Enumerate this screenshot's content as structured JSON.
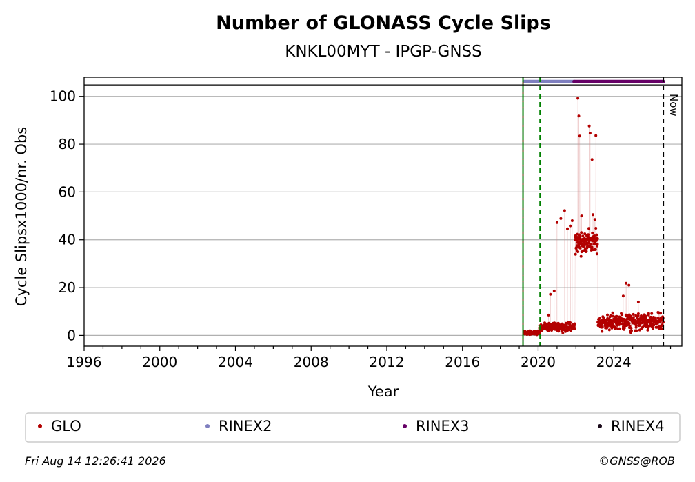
{
  "chart_data": {
    "type": "scatter",
    "title": "Number of GLONASS Cycle Slips",
    "subtitle": "KNKL00MYT - IPGP-GNSS",
    "xlabel": "Year",
    "ylabel": "Cycle Slipsx1000/nr. Obs",
    "xlim": [
      1996,
      2027.6
    ],
    "ylim": [
      -4.5,
      108
    ],
    "x_ticks": [
      1996,
      2000,
      2004,
      2008,
      2012,
      2016,
      2020,
      2024
    ],
    "x_tick_labels": [
      "1996",
      "2000",
      "2004",
      "2008",
      "2012",
      "2016",
      "2020",
      "2024"
    ],
    "y_ticks": [
      0,
      20,
      40,
      60,
      80,
      100
    ],
    "y_tick_labels": [
      "0",
      "20",
      "40",
      "60",
      "80",
      "100"
    ],
    "grid": "horizontal",
    "reference_line_y": 104.8,
    "vertical_lines": [
      {
        "x": 2019.2,
        "style": "solid-green"
      },
      {
        "x": 2019.2,
        "style": "dashed-red"
      },
      {
        "x": 2019.2,
        "style": "dashed-green"
      },
      {
        "x": 2020.1,
        "style": "dashed-green"
      },
      {
        "x": 2026.62,
        "style": "dashed-black",
        "label": "Now"
      }
    ],
    "rinex_bars": [
      {
        "name": "RINEX2",
        "color": "#7f7fbf",
        "x_start": 2019.25,
        "x_end": 2021.9,
        "y": 106.2
      },
      {
        "name": "RINEX3",
        "color": "#660066",
        "x_start": 2021.9,
        "x_end": 2026.62,
        "y": 106.2
      }
    ],
    "series": [
      {
        "name": "GLO",
        "color": "#b30000",
        "segments": [
          {
            "x_start": 2019.25,
            "x_end": 2020.1,
            "y_center": 1,
            "spread": 0.8
          },
          {
            "x_start": 2020.1,
            "x_end": 2021.95,
            "y_center": 3.5,
            "spread": 1.6
          },
          {
            "x_start": 2021.95,
            "x_end": 2023.15,
            "y_center": 39,
            "spread": 4.5
          },
          {
            "x_start": 2023.15,
            "x_end": 2026.62,
            "y_center": 5.5,
            "spread": 3.2
          }
        ],
        "outliers": [
          [
            2020.65,
            17.2
          ],
          [
            2020.85,
            18.6
          ],
          [
            2020.55,
            8.5
          ],
          [
            2021.0,
            47.2
          ],
          [
            2021.2,
            48.9
          ],
          [
            2021.4,
            52.2
          ],
          [
            2021.55,
            44.6
          ],
          [
            2021.7,
            45.8
          ],
          [
            2021.8,
            48.0
          ],
          [
            2022.1,
            99.2
          ],
          [
            2022.15,
            91.8
          ],
          [
            2022.2,
            83.4
          ],
          [
            2022.7,
            87.6
          ],
          [
            2022.75,
            84.6
          ],
          [
            2022.85,
            73.6
          ],
          [
            2023.05,
            83.6
          ],
          [
            2022.3,
            50.0
          ],
          [
            2022.9,
            50.5
          ],
          [
            2023.0,
            48.5
          ],
          [
            2024.65,
            21.8
          ],
          [
            2024.8,
            21.0
          ],
          [
            2024.5,
            16.5
          ],
          [
            2025.3,
            14.0
          ]
        ]
      }
    ],
    "legend": {
      "placement": "bottom",
      "entries": [
        {
          "label": "GLO",
          "color": "#b30000"
        },
        {
          "label": "RINEX2",
          "color": "#7f7fbf"
        },
        {
          "label": "RINEX3",
          "color": "#660066"
        },
        {
          "label": "RINEX4",
          "color": "#1a0a1a"
        }
      ]
    },
    "now_label": "Now"
  },
  "footer": {
    "timestamp": "Fri Aug 14 12:26:41 2026",
    "credit": "©GNSS@ROB"
  }
}
